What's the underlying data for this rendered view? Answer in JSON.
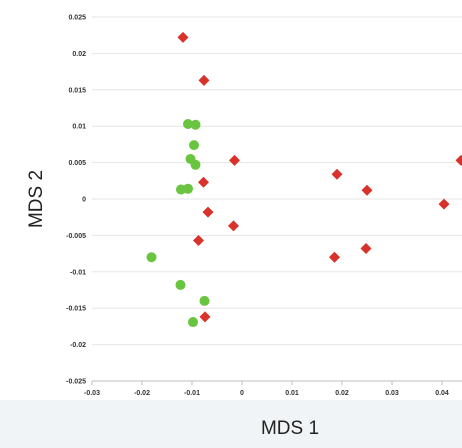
{
  "chart_data": {
    "type": "scatter",
    "title": "",
    "xlabel": "MDS 1",
    "ylabel": "MDS 2",
    "xlim": [
      -0.03,
      0.044
    ],
    "ylim": [
      -0.025,
      0.025
    ],
    "xticks": [
      -0.03,
      -0.02,
      -0.01,
      0,
      0.01,
      0.02,
      0.03,
      0.04
    ],
    "xtick_labels": [
      "-0.03",
      "-0.02",
      "-0.01",
      "0",
      "0.01",
      "0.02",
      "0.03",
      "0.04"
    ],
    "yticks": [
      0.025,
      0.02,
      0.015,
      0.01,
      0.005,
      0,
      -0.005,
      -0.01,
      -0.015,
      -0.02,
      -0.025
    ],
    "ytick_labels": [
      "0.025",
      "0.02",
      "0.015",
      "0.01",
      "0.005",
      "0",
      "-0.005",
      "-0.01",
      "-0.015",
      "-0.02",
      "-0.025"
    ],
    "grid": "horizontal",
    "series": [
      {
        "marker": "diamond",
        "color": "#d8322b",
        "points": [
          {
            "x": -0.0118,
            "y": 0.0222
          },
          {
            "x": -0.0076,
            "y": 0.0163
          },
          {
            "x": -0.0015,
            "y": 0.0053
          },
          {
            "x": -0.0077,
            "y": 0.0023
          },
          {
            "x": -0.0068,
            "y": -0.0018
          },
          {
            "x": -0.0017,
            "y": -0.0037
          },
          {
            "x": -0.0087,
            "y": -0.0057
          },
          {
            "x": 0.019,
            "y": 0.0034
          },
          {
            "x": 0.025,
            "y": 0.0012
          },
          {
            "x": 0.0185,
            "y": -0.008
          },
          {
            "x": 0.0248,
            "y": -0.0068
          },
          {
            "x": 0.0404,
            "y": -0.0007
          },
          {
            "x": 0.0438,
            "y": 0.0053
          },
          {
            "x": -0.0074,
            "y": -0.0162
          }
        ]
      },
      {
        "marker": "circle",
        "color": "#69c53f",
        "points": [
          {
            "x": -0.0108,
            "y": 0.0103
          },
          {
            "x": -0.0093,
            "y": 0.0102
          },
          {
            "x": -0.0096,
            "y": 0.0074
          },
          {
            "x": -0.0103,
            "y": 0.0055
          },
          {
            "x": -0.0093,
            "y": 0.0047
          },
          {
            "x": -0.0122,
            "y": 0.0013
          },
          {
            "x": -0.0108,
            "y": 0.0014
          },
          {
            "x": -0.0181,
            "y": -0.008
          },
          {
            "x": -0.0123,
            "y": -0.0118
          },
          {
            "x": -0.0075,
            "y": -0.014
          },
          {
            "x": -0.0098,
            "y": -0.0169
          }
        ]
      }
    ]
  },
  "ui": {
    "bottom_strip_color": "#f1f4f6"
  }
}
